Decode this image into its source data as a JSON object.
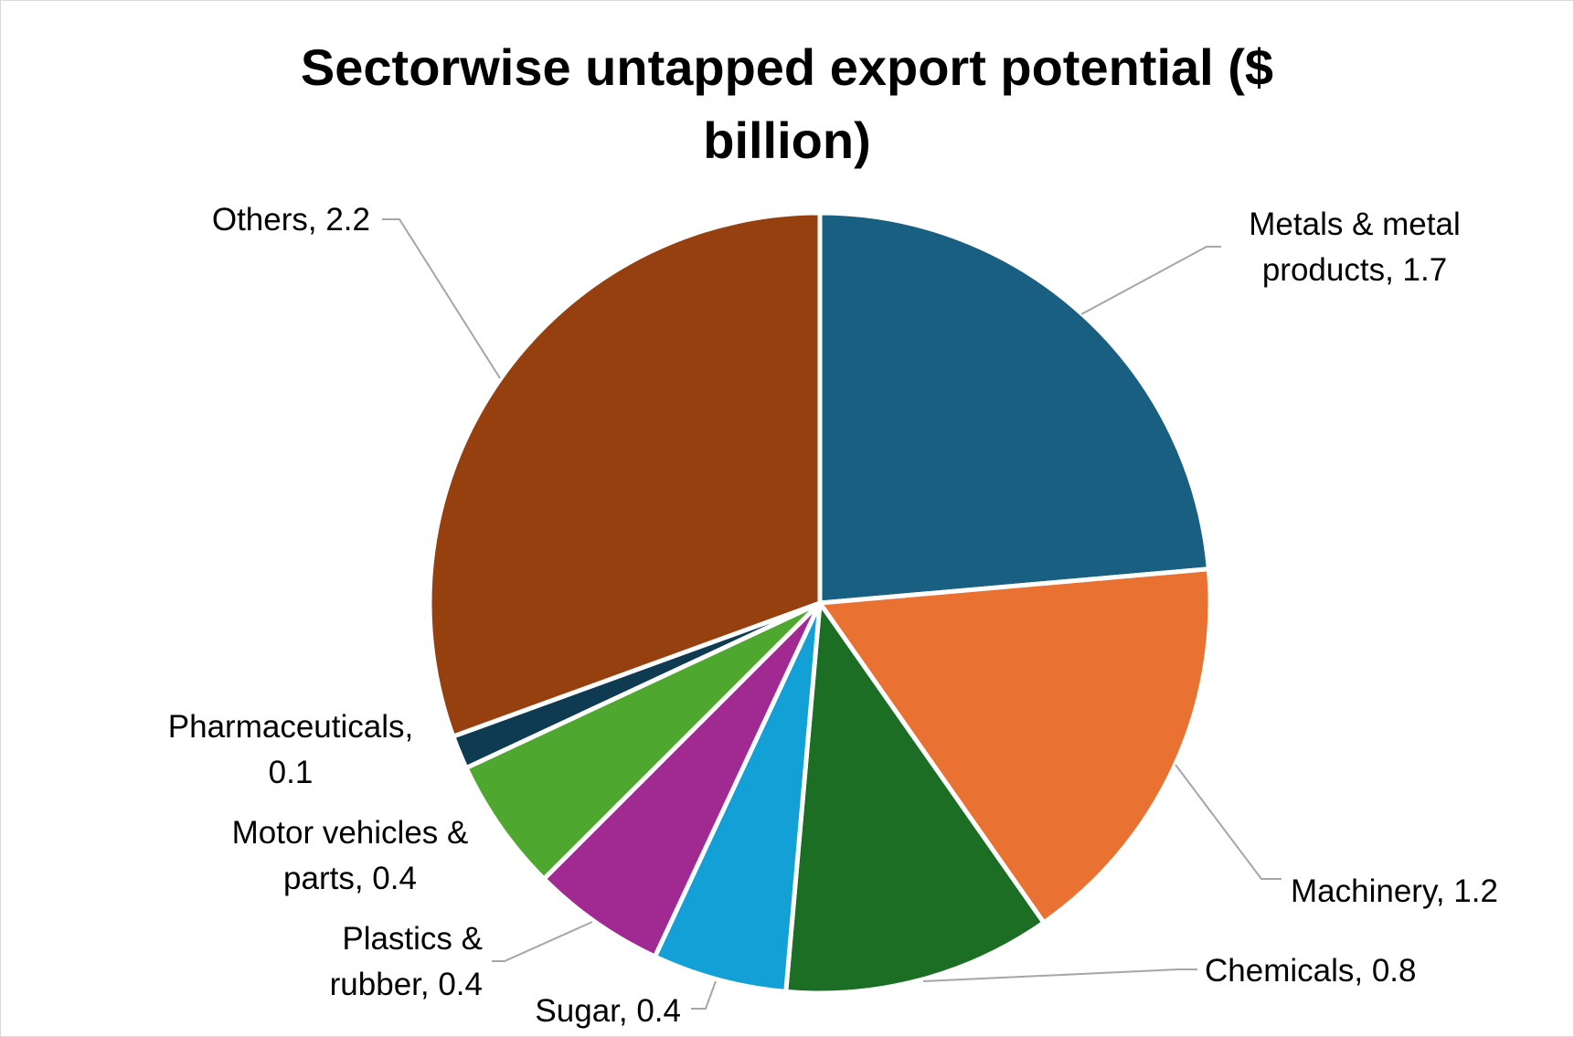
{
  "chart_data": {
    "type": "pie",
    "title_lines": [
      "Sectorwise untapped export potential ($",
      "billion)"
    ],
    "series": [
      {
        "name": "",
        "categories": [
          "Metals & metal products",
          "Machinery",
          "Chemicals",
          "Sugar",
          "Plastics & rubber",
          "Motor vehicles & parts",
          "Pharmaceuticals",
          "Others"
        ],
        "values": [
          1.7,
          1.2,
          0.8,
          0.4,
          0.4,
          0.4,
          0.1,
          2.2
        ],
        "colors": [
          "#185f82",
          "#e97132",
          "#1b6e24",
          "#12a0d6",
          "#a02a92",
          "#4ea72e",
          "#0e3a52",
          "#96400f"
        ]
      }
    ],
    "data_labels": [
      [
        "Metals & metal",
        "products, 1.7"
      ],
      [
        "Machinery, 1.2"
      ],
      [
        "Chemicals, 0.8"
      ],
      [
        "Sugar, 0.4"
      ],
      [
        "Plastics &",
        "rubber, 0.4"
      ],
      [
        "Motor vehicles &",
        "parts, 0.4"
      ],
      [
        "Pharmaceuticals,",
        "0.1"
      ],
      [
        "Others, 2.2"
      ]
    ],
    "start_angle": "12 o'clock",
    "direction": "clockwise",
    "legend": "none"
  }
}
